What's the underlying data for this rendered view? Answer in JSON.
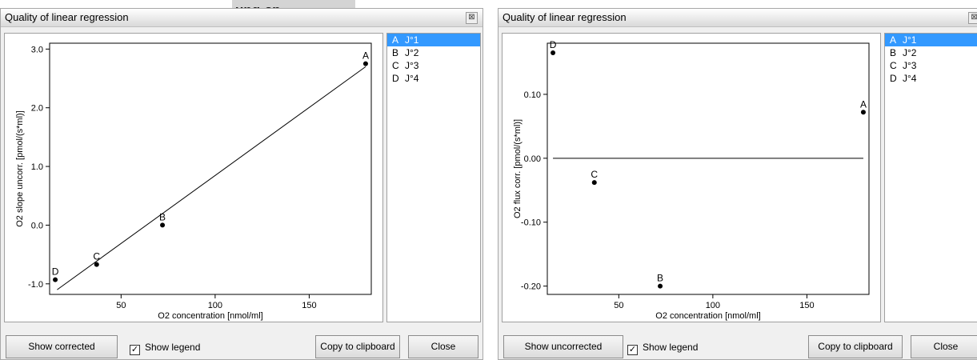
{
  "background_title": "ung-sp",
  "windows": [
    {
      "title": "Quality of linear regression",
      "close_glyph": "⊠",
      "toggle_button": "Show corrected",
      "show_legend_label": "Show legend",
      "show_legend_checked": "✓",
      "copy_button": "Copy to clipboard",
      "close_button": "Close",
      "legend": [
        {
          "key": "A",
          "label": "J°1",
          "selected": true
        },
        {
          "key": "B",
          "label": "J°2",
          "selected": false
        },
        {
          "key": "C",
          "label": "J°3",
          "selected": false
        },
        {
          "key": "D",
          "label": "J°4",
          "selected": false
        }
      ]
    },
    {
      "title": "Quality of linear regression",
      "close_glyph": "⊠",
      "toggle_button": "Show uncorrected",
      "show_legend_label": "Show legend",
      "show_legend_checked": "✓",
      "copy_button": "Copy to clipboard",
      "close_button": "Close",
      "legend": [
        {
          "key": "A",
          "label": "J°1",
          "selected": true
        },
        {
          "key": "B",
          "label": "J°2",
          "selected": false
        },
        {
          "key": "C",
          "label": "J°3",
          "selected": false
        },
        {
          "key": "D",
          "label": "J°4",
          "selected": false
        }
      ]
    }
  ],
  "chart_data": [
    {
      "type": "scatter",
      "title": "",
      "xlabel": "O2 concentration [nmol/ml]",
      "ylabel": "O2 slope uncorr. [pmol/(s*ml)]",
      "xlim": [
        12,
        183
      ],
      "ylim": [
        -1.18,
        3.1
      ],
      "xticks": [
        50,
        100,
        150
      ],
      "yticks": [
        -1.0,
        0.0,
        1.0,
        2.0,
        3.0
      ],
      "ytick_labels": [
        "-1.0",
        "0.0",
        "1.0",
        "2.0",
        "3.0"
      ],
      "points": [
        {
          "label": "A",
          "x": 180,
          "y": 2.75
        },
        {
          "label": "B",
          "x": 72,
          "y": 0.0
        },
        {
          "label": "C",
          "x": 37,
          "y": -0.67
        },
        {
          "label": "D",
          "x": 15,
          "y": -0.93
        }
      ],
      "fit_line": {
        "x": [
          16,
          180
        ],
        "y": [
          -1.1,
          2.7
        ]
      }
    },
    {
      "type": "scatter",
      "title": "",
      "xlabel": "O2 concentration [nmol/ml]",
      "ylabel": "O2 flux corr. [pmol/(s*ml)]",
      "xlim": [
        12,
        183
      ],
      "ylim": [
        -0.213,
        0.18
      ],
      "xticks": [
        50,
        100,
        150
      ],
      "yticks": [
        -0.2,
        -0.1,
        0.0,
        0.1
      ],
      "ytick_labels": [
        "-0.20",
        "-0.10",
        "0.00",
        "0.10"
      ],
      "points": [
        {
          "label": "A",
          "x": 180,
          "y": 0.072
        },
        {
          "label": "B",
          "x": 72,
          "y": -0.2
        },
        {
          "label": "C",
          "x": 37,
          "y": -0.038
        },
        {
          "label": "D",
          "x": 15,
          "y": 0.165
        }
      ],
      "fit_line": {
        "x": [
          15,
          180
        ],
        "y": [
          0.0,
          0.0
        ]
      }
    }
  ]
}
